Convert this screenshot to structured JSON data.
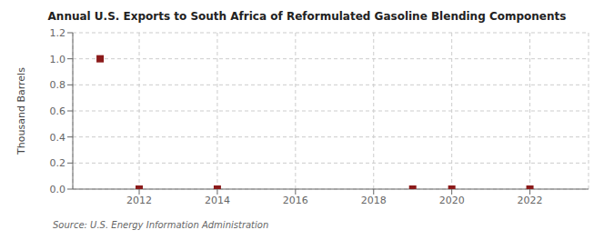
{
  "chart_data": {
    "type": "scatter",
    "title": "Annual U.S. Exports to South Africa of Reformulated Gasoline Blending Components",
    "ylabel": "Thousand Barrels",
    "annotations": [
      "Source: U.S. Energy Information Administration"
    ],
    "x": [
      2011,
      2012,
      2014,
      2019,
      2020,
      2022
    ],
    "values": [
      1.0,
      0.0,
      0.0,
      0.0,
      0.0,
      0.0
    ],
    "color": "#8B1A1A",
    "marker": "square",
    "xlim": [
      2010.3,
      2023.5
    ],
    "xticks": [
      2012,
      2014,
      2016,
      2018,
      2020,
      2022
    ],
    "ylim": [
      0.0,
      1.2
    ],
    "yticks": [
      {
        "value": 0,
        "label": "0.0"
      },
      0.2,
      0.4,
      0.6,
      0.8,
      {
        "value": 1,
        "label": "1.0"
      },
      1.2
    ],
    "grid": true
  }
}
